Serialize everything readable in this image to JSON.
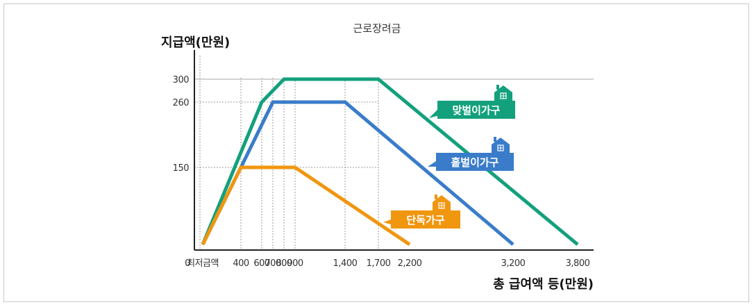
{
  "chart_data": {
    "type": "line",
    "title": "근로장려금",
    "ylabel": "지급액(만원)",
    "xlabel": "총 급여액 등(만원)",
    "x_tick_labels": [
      {
        "label": "0",
        "x": 0
      },
      {
        "label": "최저금액",
        "x": 100
      },
      {
        "label": "400",
        "x": 400
      },
      {
        "label": "600",
        "x": 600
      },
      {
        "label": "700",
        "x": 700
      },
      {
        "label": "800",
        "x": 800
      },
      {
        "label": "900",
        "x": 900
      },
      {
        "label": "1,400",
        "x": 1400
      },
      {
        "label": "1,700",
        "x": 1700
      },
      {
        "label": "2,200",
        "x": 2200
      },
      {
        "label": "3,200",
        "x": 3200
      },
      {
        "label": "3,800",
        "x": 3800
      }
    ],
    "y_ticks": [
      150,
      260,
      300
    ],
    "series": [
      {
        "name": "맞벌이가구",
        "color": "#13a07c",
        "points": [
          [
            100,
            0
          ],
          [
            600,
            260
          ],
          [
            800,
            300
          ],
          [
            1700,
            300
          ],
          [
            3800,
            0
          ]
        ]
      },
      {
        "name": "홑벌이가구",
        "color": "#3a7cc9",
        "points": [
          [
            100,
            0
          ],
          [
            400,
            150
          ],
          [
            700,
            260
          ],
          [
            1400,
            260
          ],
          [
            3200,
            0
          ]
        ]
      },
      {
        "name": "단독가구",
        "color": "#f0960f",
        "points": [
          [
            100,
            0
          ],
          [
            400,
            150
          ],
          [
            900,
            150
          ],
          [
            2200,
            0
          ]
        ]
      }
    ]
  }
}
